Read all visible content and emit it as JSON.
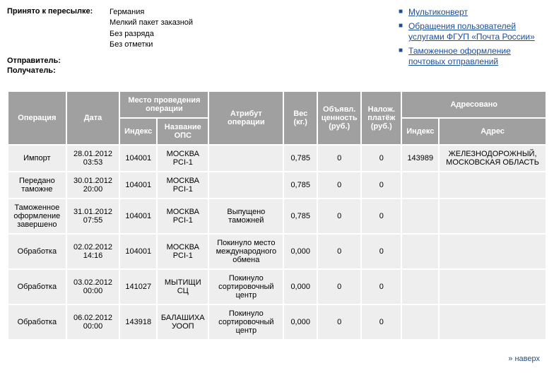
{
  "summary": {
    "accepted_label": "Принято к пересылке:",
    "accepted_values": [
      "Германия",
      "Мелкий пакет заказной",
      "Без разряда",
      "Без отметки"
    ],
    "sender_label": "Отправитель:",
    "recipient_label": "Получатель:"
  },
  "sidebar_links": [
    "Мультиконверт",
    "Обращения пользователей услугами ФГУП «Почта России»",
    "Таможенное оформление почтовых отправлений"
  ],
  "table": {
    "headers": {
      "operation": "Операция",
      "date": "Дата",
      "location_group": "Место проведения операции",
      "index": "Индекс",
      "ops_name": "Название ОПС",
      "attribute": "Атрибут операции",
      "weight": "Вес (кг.)",
      "declared_value": "Объявл. ценность (руб.)",
      "cod": "Налож. платёж (руб.)",
      "addressed_group": "Адресовано",
      "addr_index": "Индекс",
      "address": "Адрес"
    },
    "rows": [
      {
        "operation": "Импорт",
        "date": "28.01.2012 03:53",
        "index": "104001",
        "ops": "МОСКВА PCI-1",
        "attr": "",
        "weight": "0,785",
        "decl": "0",
        "cod": "0",
        "aidx": "143989",
        "addr": "ЖЕЛЕЗНОДОРОЖНЫЙ, МОСКОВСКАЯ ОБЛАСТЬ"
      },
      {
        "operation": "Передано таможне",
        "date": "30.01.2012 20:00",
        "index": "104001",
        "ops": "МОСКВА PCI-1",
        "attr": "",
        "weight": "0,785",
        "decl": "0",
        "cod": "0",
        "aidx": "",
        "addr": ""
      },
      {
        "operation": "Таможенное оформление завершено",
        "date": "31.01.2012 07:55",
        "index": "104001",
        "ops": "МОСКВА PCI-1",
        "attr": "Выпущено таможней",
        "weight": "0,785",
        "decl": "0",
        "cod": "0",
        "aidx": "",
        "addr": ""
      },
      {
        "operation": "Обработка",
        "date": "02.02.2012 14:16",
        "index": "104001",
        "ops": "МОСКВА PCI-1",
        "attr": "Покинуло место международного обмена",
        "weight": "0,000",
        "decl": "0",
        "cod": "0",
        "aidx": "",
        "addr": ""
      },
      {
        "operation": "Обработка",
        "date": "03.02.2012 00:00",
        "index": "141027",
        "ops": "МЫТИЩИ СЦ",
        "attr": "Покинуло сортировочный центр",
        "weight": "0,000",
        "decl": "0",
        "cod": "0",
        "aidx": "",
        "addr": ""
      },
      {
        "operation": "Обработка",
        "date": "06.02.2012 00:00",
        "index": "143918",
        "ops": "БАЛАШИХА УООП",
        "attr": "Покинуло сортировочный центр",
        "weight": "0,000",
        "decl": "0",
        "cod": "0",
        "aidx": "",
        "addr": ""
      }
    ],
    "column_widths": [
      "70",
      "64",
      "44",
      "62",
      "90",
      "40",
      "52",
      "48",
      "44",
      "130"
    ]
  },
  "footer": {
    "text": "наверх",
    "arrow": "»"
  },
  "colors": {
    "header_bg": "#a0a0a0",
    "cell_bg": "#eeeeee",
    "link": "#1a4d99"
  }
}
